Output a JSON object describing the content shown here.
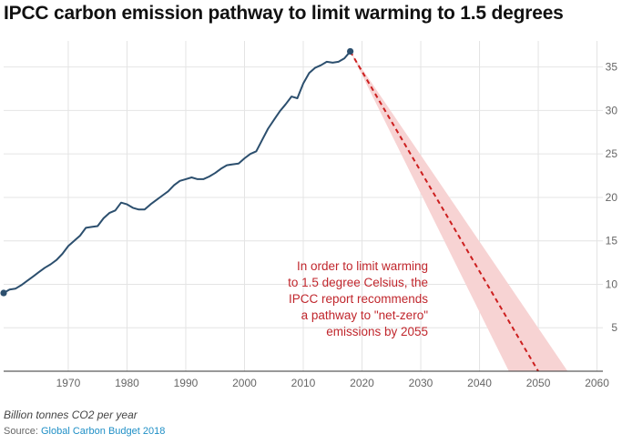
{
  "colors": {
    "line": "#2c4f6e",
    "projection": "#cc1f1f",
    "band": "#f7d3d3",
    "annotation": "#c0262c",
    "grid": "#e4e4e4",
    "axis": "#333333",
    "tick_label": "#666666",
    "source_link": "#1f8fc6"
  },
  "chart_data": {
    "type": "line",
    "title": "IPCC carbon emission pathway to limit warming to 1.5 degrees",
    "ylabel": "Billion tonnes CO2 per year",
    "xlim": [
      1959,
      2061
    ],
    "ylim": [
      0,
      38
    ],
    "grid": true,
    "x_ticks": [
      1970,
      1980,
      1990,
      2000,
      2010,
      2020,
      2030,
      2040,
      2050,
      2060
    ],
    "y_ticks": [
      5,
      10,
      15,
      20,
      25,
      30,
      35
    ],
    "series": [
      {
        "style": "solid",
        "x": [
          1959,
          1960,
          1961,
          1962,
          1963,
          1964,
          1965,
          1966,
          1967,
          1968,
          1969,
          1970,
          1971,
          1972,
          1973,
          1974,
          1975,
          1976,
          1977,
          1978,
          1979,
          1980,
          1981,
          1982,
          1983,
          1984,
          1985,
          1986,
          1987,
          1988,
          1989,
          1990,
          1991,
          1992,
          1993,
          1994,
          1995,
          1996,
          1997,
          1998,
          1999,
          2000,
          2001,
          2002,
          2003,
          2004,
          2005,
          2006,
          2007,
          2008,
          2009,
          2010,
          2011,
          2012,
          2013,
          2014,
          2015,
          2016,
          2017,
          2018
        ],
        "y": [
          9.0,
          9.4,
          9.5,
          9.9,
          10.4,
          10.9,
          11.4,
          11.9,
          12.3,
          12.8,
          13.5,
          14.4,
          15.0,
          15.6,
          16.5,
          16.6,
          16.7,
          17.6,
          18.2,
          18.5,
          19.4,
          19.2,
          18.8,
          18.6,
          18.6,
          19.2,
          19.7,
          20.2,
          20.7,
          21.4,
          21.9,
          22.1,
          22.3,
          22.1,
          22.1,
          22.4,
          22.8,
          23.3,
          23.7,
          23.8,
          23.9,
          24.5,
          25.0,
          25.3,
          26.6,
          27.9,
          28.9,
          29.9,
          30.7,
          31.6,
          31.4,
          33.1,
          34.3,
          34.9,
          35.2,
          35.6,
          35.5,
          35.6,
          36.0,
          36.8
        ]
      },
      {
        "style": "dashed",
        "x": [
          2018,
          2050
        ],
        "y": [
          36.8,
          0
        ]
      }
    ],
    "band": {
      "x_start": 2018,
      "y_start": 36.8,
      "x_end_low": 2045,
      "x_end_high": 2055,
      "y_end": 0
    },
    "endpoints": [
      {
        "x": 1959,
        "y": 9.0
      },
      {
        "x": 2018,
        "y": 36.8
      }
    ],
    "annotation": {
      "lines": [
        "In order to limit warming",
        "to 1.5 degree Celsius, the",
        "IPCC report recommends",
        "a pathway to \"net-zero\"",
        "emissions by 2055"
      ]
    }
  },
  "footer": {
    "unit_note": "Billion tonnes CO2 per year",
    "source_prefix": "Source: ",
    "source_name": "Global Carbon Budget 2018"
  }
}
